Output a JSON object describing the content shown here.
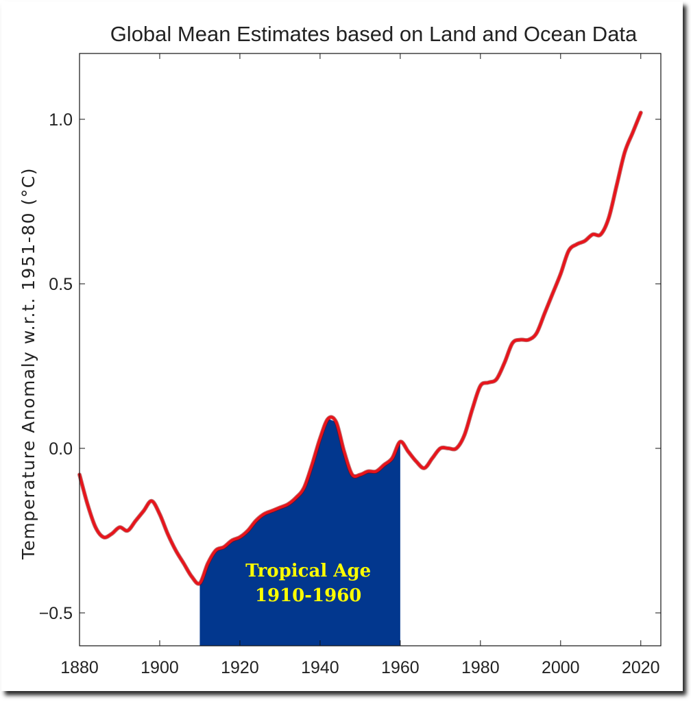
{
  "chart_data": {
    "type": "line",
    "title": "Global Mean Estimates based on Land and Ocean Data",
    "ylabel": "Temperature Anomaly w.r.t. 1951-80 (°C)",
    "xlabel": "",
    "xlim": [
      1880,
      2025
    ],
    "ylim": [
      -0.6,
      1.2
    ],
    "xticks": [
      1880,
      1900,
      1920,
      1940,
      1960,
      1980,
      2000,
      2020
    ],
    "yticks": [
      {
        "value": -0.5,
        "label": "−0.5"
      },
      {
        "value": 0.0,
        "label": "0.0"
      },
      {
        "value": 0.5,
        "label": "0.5"
      },
      {
        "value": 1.0,
        "label": "1.0"
      }
    ],
    "grid": false,
    "series": [
      {
        "color": "#e8141b",
        "x": [
          1880,
          1882,
          1884,
          1886,
          1888,
          1890,
          1892,
          1894,
          1896,
          1898,
          1900,
          1902,
          1904,
          1906,
          1908,
          1910,
          1912,
          1914,
          1916,
          1918,
          1920,
          1922,
          1924,
          1926,
          1928,
          1930,
          1932,
          1934,
          1936,
          1938,
          1940,
          1942,
          1944,
          1946,
          1948,
          1950,
          1952,
          1954,
          1956,
          1958,
          1960,
          1962,
          1964,
          1966,
          1968,
          1970,
          1972,
          1974,
          1976,
          1978,
          1980,
          1982,
          1984,
          1986,
          1988,
          1990,
          1992,
          1994,
          1996,
          1998,
          2000,
          2002,
          2004,
          2006,
          2008,
          2010,
          2012,
          2014,
          2016,
          2018,
          2020
        ],
        "y": [
          -0.08,
          -0.17,
          -0.24,
          -0.27,
          -0.26,
          -0.24,
          -0.25,
          -0.22,
          -0.19,
          -0.16,
          -0.2,
          -0.26,
          -0.31,
          -0.35,
          -0.39,
          -0.41,
          -0.35,
          -0.31,
          -0.3,
          -0.28,
          -0.27,
          -0.25,
          -0.22,
          -0.2,
          -0.19,
          -0.18,
          -0.17,
          -0.15,
          -0.12,
          -0.05,
          0.03,
          0.09,
          0.08,
          -0.01,
          -0.08,
          -0.08,
          -0.07,
          -0.07,
          -0.05,
          -0.03,
          0.02,
          -0.01,
          -0.04,
          -0.06,
          -0.03,
          0.0,
          0.0,
          0.0,
          0.04,
          0.12,
          0.19,
          0.2,
          0.21,
          0.26,
          0.32,
          0.33,
          0.33,
          0.35,
          0.41,
          0.47,
          0.53,
          0.6,
          0.62,
          0.63,
          0.65,
          0.65,
          0.7,
          0.8,
          0.9,
          0.96,
          1.02
        ]
      }
    ],
    "shaded_region": {
      "x_start": 1910,
      "x_end": 1960,
      "color": "#02378e",
      "label_line1": "Tropical Age",
      "label_line2": "1910-1960"
    }
  }
}
